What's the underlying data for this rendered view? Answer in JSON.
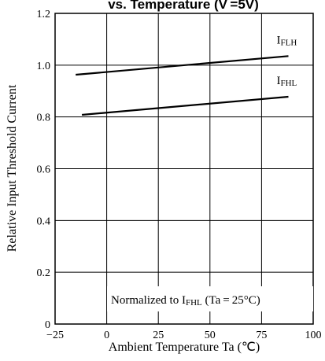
{
  "chart_data": {
    "type": "line",
    "title": "vs. Temperature (V =5V)",
    "xlabel": "Ambient Temperature Ta (℃)",
    "ylabel": "Relative Input  Threshold Current",
    "xlim": [
      -25,
      100
    ],
    "ylim": [
      0,
      1.2
    ],
    "x_ticks": [
      "−25",
      "0",
      "25",
      "50",
      "75",
      "100"
    ],
    "y_ticks": [
      "0",
      "0.2",
      "0.4",
      "0.6",
      "0.8",
      "1.0",
      "1.2"
    ],
    "grid": true,
    "series": [
      {
        "name": "IFLH",
        "label_main": "I",
        "label_sub": "FLH",
        "x": [
          -15,
          88
        ],
        "y": [
          0.963,
          1.035
        ]
      },
      {
        "name": "IFHL",
        "label_main": "I",
        "label_sub": "FHL",
        "x": [
          -12,
          88
        ],
        "y": [
          0.808,
          0.878
        ]
      }
    ],
    "annotation": {
      "prefix": "Normalized to I",
      "sub": "FHL",
      "suffix": " (Ta = 25°C)"
    }
  }
}
